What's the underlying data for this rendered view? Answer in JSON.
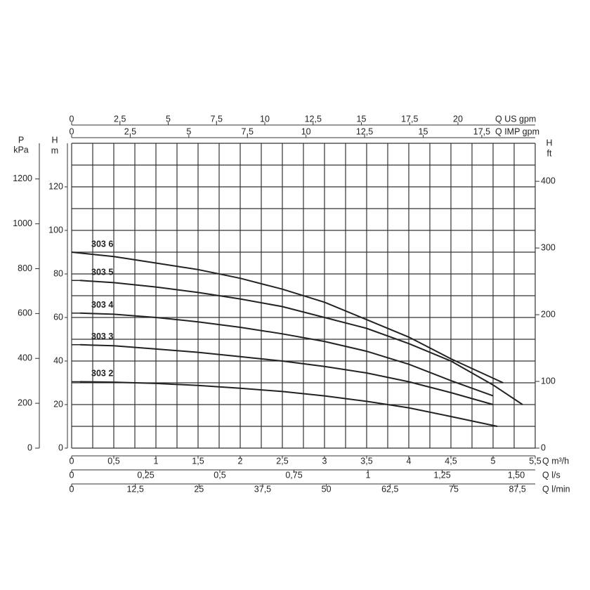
{
  "chart_data": {
    "type": "line",
    "color": "#222",
    "grid": true,
    "ylim": [
      0,
      140
    ],
    "yticks": [
      0,
      20,
      40,
      60,
      80,
      100,
      120
    ],
    "y_label": [
      "H",
      "m"
    ],
    "p_axis": {
      "label": [
        "P",
        "kPa"
      ],
      "lim": [
        0,
        1359
      ],
      "ticks": [
        0,
        200,
        400,
        600,
        800,
        1000,
        1200
      ]
    },
    "ft_axis": {
      "label": [
        "H",
        "ft"
      ],
      "lim": [
        0,
        457
      ],
      "ticks": [
        0,
        100,
        200,
        300,
        400
      ]
    },
    "x_axes": [
      {
        "label": "Q US gpm",
        "position": "top",
        "lim": [
          0,
          24.0
        ],
        "ticks": [
          0,
          {
            "value": 2.5,
            "label": "2,5"
          },
          5,
          {
            "value": 7.5,
            "label": "7,5"
          },
          10,
          {
            "value": 12.5,
            "label": "12,5"
          },
          15,
          {
            "value": 17.5,
            "label": "17,5"
          },
          20
        ]
      },
      {
        "label": "Q IMP gpm",
        "position": "top",
        "lim": [
          0,
          19.78
        ],
        "ticks": [
          0,
          {
            "value": 2.5,
            "label": "2,5"
          },
          5,
          {
            "value": 7.5,
            "label": "7,5"
          },
          10,
          {
            "value": 12.5,
            "label": "12,5"
          },
          15,
          {
            "value": 17.5,
            "label": "17,5"
          }
        ]
      },
      {
        "label": "Q m³/h",
        "position": "bottom",
        "lim": [
          0,
          5.5
        ],
        "ticks": [
          0,
          {
            "value": 0.5,
            "label": "0,5"
          },
          1,
          {
            "value": 1.5,
            "label": "1,5"
          },
          2,
          {
            "value": 2.5,
            "label": "2,5"
          },
          3,
          {
            "value": 3.5,
            "label": "3,5"
          },
          4,
          {
            "value": 4.5,
            "label": "4,5"
          },
          5,
          {
            "value": 5.5,
            "label": "5,5"
          }
        ]
      },
      {
        "label": "Q l/s",
        "position": "bottom",
        "lim": [
          0,
          1.564
        ],
        "ticks": [
          0,
          {
            "value": 0.25,
            "label": "0,25"
          },
          {
            "value": 0.5,
            "label": "0,5"
          },
          {
            "value": 0.75,
            "label": "0,75"
          },
          1,
          {
            "value": 1.25,
            "label": "1,25"
          },
          {
            "value": 1.5,
            "label": "1,50"
          }
        ]
      },
      {
        "label": "Q l/min",
        "position": "bottom",
        "lim": [
          0,
          91
        ],
        "ticks": [
          0,
          {
            "value": 12.5,
            "label": "12,5"
          },
          25,
          {
            "value": 37.5,
            "label": "37,5"
          },
          50,
          {
            "value": 62.5,
            "label": "62,5"
          },
          75,
          {
            "value": 87.5,
            "label": "87,5"
          }
        ]
      }
    ],
    "series": [
      {
        "name": "303 6",
        "x": [
          0,
          0.5,
          1,
          1.5,
          2,
          2.5,
          3,
          3.5,
          4,
          4.5,
          5.12
        ],
        "values": [
          90,
          88,
          85,
          82,
          78,
          73,
          67,
          59,
          51,
          41,
          30
        ]
      },
      {
        "name": "303 5",
        "x": [
          0.1,
          0.5,
          1,
          1.5,
          2,
          2.5,
          3,
          3.5,
          4,
          4.5,
          5,
          5.35
        ],
        "values": [
          77,
          76,
          74,
          71.5,
          68.5,
          65,
          60,
          55,
          48,
          40,
          29,
          20
        ]
      },
      {
        "name": "303 4",
        "x": [
          0.1,
          0.5,
          1,
          1.5,
          2,
          2.5,
          3,
          3.5,
          4,
          4.5,
          5.0
        ],
        "values": [
          62,
          61.5,
          60,
          58,
          55.5,
          52.5,
          49,
          44.5,
          38.5,
          31,
          24
        ]
      },
      {
        "name": "303 3",
        "x": [
          0.1,
          0.5,
          1,
          1.5,
          2,
          2.5,
          3,
          3.5,
          4,
          4.5,
          5.0
        ],
        "values": [
          47.5,
          47,
          45.5,
          44,
          42,
          40,
          37.5,
          34.5,
          30.5,
          25.5,
          20
        ]
      },
      {
        "name": "303 2",
        "x": [
          0.1,
          0.5,
          1,
          1.5,
          2,
          2.5,
          3,
          3.5,
          4,
          4.5,
          5.05
        ],
        "values": [
          30.5,
          30.3,
          29.7,
          28.8,
          27.5,
          26,
          24,
          21.5,
          18.5,
          14.5,
          10
        ]
      }
    ]
  }
}
